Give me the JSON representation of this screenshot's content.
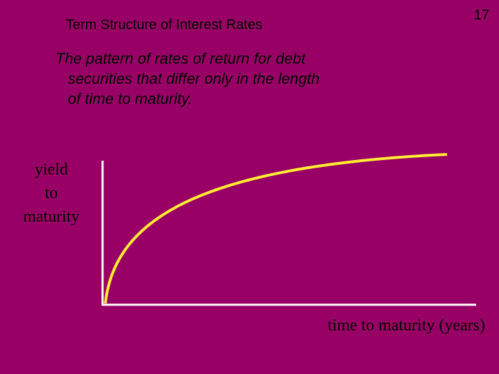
{
  "slide": {
    "title": "Term Structure of Interest Rates",
    "number": "17",
    "body": [
      "The pattern of rates of return for debt",
      "securities that differ only in the length",
      "of time to maturity."
    ]
  },
  "diagram": {
    "y_label": [
      "yield",
      "to",
      "maturity"
    ],
    "x_label": "time to maturity (years)"
  }
}
